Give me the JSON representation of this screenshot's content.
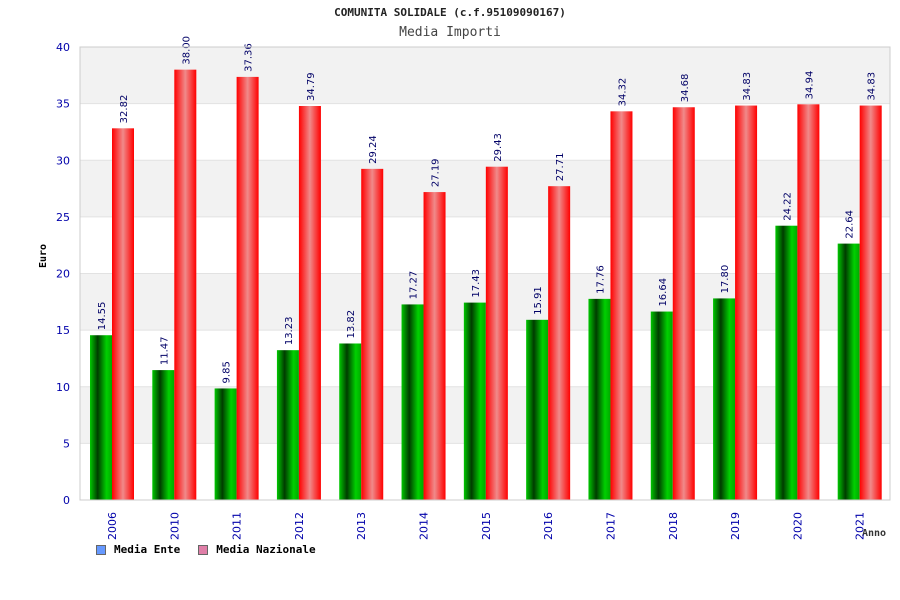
{
  "header": {
    "title": "COMUNITA SOLIDALE (c.f.95109090167)",
    "subtitle": "Media Importi"
  },
  "colors": {
    "ente": "#00b400",
    "nazionale": "#ff1a1a",
    "ente_legend": "#6699ff",
    "nazionale_legend": "#e07fa8",
    "axis_text": "#0000aa",
    "grid_band": "#f2f2f2"
  },
  "legend": {
    "items": [
      {
        "label": "Media Ente",
        "icon": "blue-square-swatch"
      },
      {
        "label": "Media Nazionale",
        "icon": "pink-square-swatch"
      }
    ]
  },
  "chart_data": {
    "type": "bar",
    "title": "COMUNITA SOLIDALE (c.f.95109090167)",
    "subtitle": "Media Importi",
    "xlabel": "Anno",
    "ylabel": "Euro",
    "ylim": [
      0,
      40
    ],
    "yticks": [
      0,
      5,
      10,
      15,
      20,
      25,
      30,
      35,
      40
    ],
    "grid": true,
    "legend_position": "bottom-left",
    "categories": [
      "2006",
      "2010",
      "2011",
      "2012",
      "2013",
      "2014",
      "2015",
      "2016",
      "2017",
      "2018",
      "2019",
      "2020",
      "2021"
    ],
    "series": [
      {
        "name": "Media Ente",
        "values": [
          14.55,
          11.47,
          9.85,
          13.23,
          13.82,
          17.27,
          17.43,
          15.91,
          17.76,
          16.64,
          17.8,
          24.22,
          22.64
        ],
        "labels": [
          "14.55",
          "11.47",
          "9.85",
          "13.23",
          "13.82",
          "17.27",
          "17.43",
          "15.91",
          "17.76",
          "16.64",
          "17.80",
          "24.22",
          "22.64"
        ]
      },
      {
        "name": "Media Nazionale",
        "values": [
          32.82,
          38.0,
          37.36,
          34.79,
          29.24,
          27.19,
          29.43,
          27.71,
          34.32,
          34.68,
          34.83,
          34.94,
          34.83
        ],
        "labels": [
          "32.82",
          "38.00",
          "37.36",
          "34.79",
          "29.24",
          "27.19",
          "29.43",
          "27.71",
          "34.32",
          "34.68",
          "34.83",
          "34.94",
          "34.83"
        ]
      }
    ]
  }
}
